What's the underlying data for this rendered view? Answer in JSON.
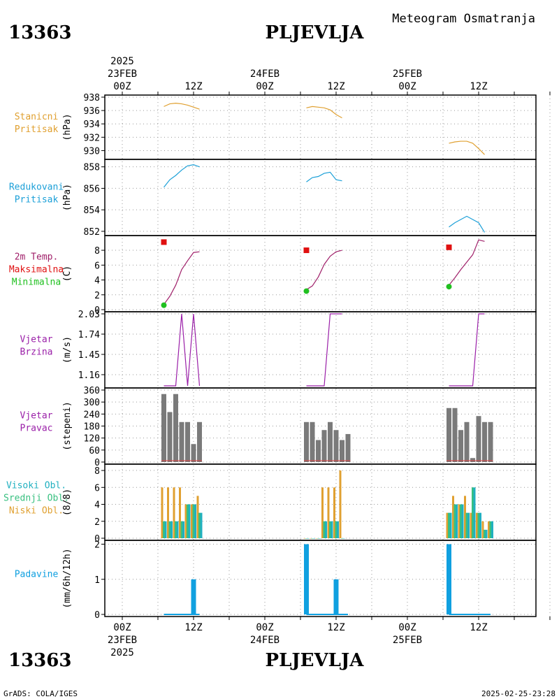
{
  "header": {
    "station_id": "13363",
    "station_name": "PLJEVLJA",
    "meteogram_title": "Meteogram Osmatranja"
  },
  "time_axis": {
    "top": [
      {
        "year": "2025",
        "date": "23FEB",
        "hour": "00Z"
      },
      {
        "hour": "12Z"
      },
      {
        "date": "24FEB",
        "hour": "00Z"
      },
      {
        "hour": "12Z"
      },
      {
        "date": "25FEB",
        "hour": "00Z"
      },
      {
        "hour": "12Z"
      }
    ],
    "bottom": [
      {
        "hour": "00Z",
        "date": "23FEB",
        "year": "2025"
      },
      {
        "hour": "12Z"
      },
      {
        "hour": "00Z",
        "date": "24FEB"
      },
      {
        "hour": "12Z"
      },
      {
        "hour": "00Z",
        "date": "25FEB"
      },
      {
        "hour": "12Z"
      }
    ]
  },
  "footer": {
    "credit": "GrADS: COLA/IGES",
    "timestamp": "2025-02-25-23:28"
  },
  "colors": {
    "station_pressure": "#e0a030",
    "reduced_pressure": "#1ca0d8",
    "temperature": "#a0206a",
    "maximum": "#e01010",
    "minimum": "#20c020",
    "wind": "#9a1fa8",
    "wind_dir": "#7a7a7a",
    "cloud_high": "#20b0c0",
    "cloud_mid": "#38c080",
    "cloud_low": "#e0a030",
    "precip": "#10a0e0"
  },
  "chart_data": [
    {
      "type": "line",
      "panel": "station-pressure",
      "labels": [
        "Stanicni",
        "Pritisak"
      ],
      "ylabel": "(hPa)",
      "ylim": [
        929,
        938
      ],
      "yticks": [
        930,
        932,
        934,
        936,
        938
      ],
      "series": [
        {
          "x": [
            7,
            8,
            9,
            10,
            11,
            12,
            13
          ],
          "y": [
            936.6,
            937.0,
            937.1,
            937.0,
            936.8,
            936.5,
            936.2
          ]
        },
        {
          "x": [
            31,
            32,
            33,
            34,
            35,
            36,
            37
          ],
          "y": [
            936.4,
            936.6,
            936.5,
            936.4,
            936.1,
            935.4,
            934.9
          ]
        },
        {
          "x": [
            55,
            56,
            57,
            58,
            59,
            60,
            61
          ],
          "y": [
            931.1,
            931.3,
            931.4,
            931.4,
            931.1,
            930.3,
            929.4
          ]
        }
      ]
    },
    {
      "type": "line",
      "panel": "reduced-pressure",
      "labels": [
        "Redukovani",
        "Pritisak"
      ],
      "ylabel": "(hPa)",
      "ylim": [
        851.8,
        858.5
      ],
      "yticks": [
        852,
        854,
        856,
        858
      ],
      "series": [
        {
          "x": [
            7,
            8,
            9,
            10,
            11,
            12,
            13
          ],
          "y": [
            856.1,
            856.8,
            857.2,
            857.7,
            858.1,
            858.2,
            858.0
          ]
        },
        {
          "x": [
            31,
            32,
            33,
            34,
            35,
            36,
            37
          ],
          "y": [
            856.6,
            857.0,
            857.1,
            857.4,
            857.5,
            856.8,
            856.7
          ]
        },
        {
          "x": [
            55,
            56,
            57,
            58,
            59,
            60,
            61
          ],
          "y": [
            852.4,
            852.8,
            853.1,
            853.4,
            853.1,
            852.8,
            851.9
          ]
        }
      ]
    },
    {
      "type": "line",
      "panel": "temperature",
      "labels": [
        "2m Temp.",
        "Maksimalna",
        "Minimalna"
      ],
      "ylabel": "(C)",
      "ylim": [
        0,
        9.7
      ],
      "yticks": [
        0,
        2,
        4,
        6,
        8
      ],
      "series": [
        {
          "name": "2m Temp.",
          "x": [
            7,
            8,
            9,
            10,
            11,
            12,
            13
          ],
          "y": [
            0.7,
            1.8,
            3.3,
            5.4,
            6.6,
            7.7,
            7.8
          ]
        },
        {
          "name": "2m Temp.",
          "x": [
            31,
            32,
            33,
            34,
            35,
            36,
            37
          ],
          "y": [
            2.7,
            3.2,
            4.4,
            6.1,
            7.2,
            7.8,
            8.0
          ]
        },
        {
          "name": "2m Temp.",
          "x": [
            55,
            56,
            57,
            58,
            59,
            60,
            61
          ],
          "y": [
            3.3,
            4.3,
            5.4,
            6.4,
            7.4,
            9.4,
            9.2
          ]
        }
      ],
      "maximum": {
        "x": [
          7,
          31,
          55
        ],
        "y": [
          9.1,
          8.0,
          8.4
        ]
      },
      "minimum": {
        "x": [
          7,
          31,
          55
        ],
        "y": [
          0.6,
          2.5,
          3.1
        ]
      }
    },
    {
      "type": "line",
      "panel": "wind-speed",
      "labels": [
        "Vjetar",
        "Brzina"
      ],
      "ylabel": "(m/s)",
      "ylim": [
        1.0,
        2.03
      ],
      "ytick_labels": [
        "2.03",
        "1.74",
        "1.45",
        "1.16"
      ],
      "yticks": [
        2.03,
        1.74,
        1.45,
        1.16
      ],
      "series": [
        {
          "x": [
            7,
            9,
            10,
            11,
            12,
            13
          ],
          "y": [
            1.0,
            1.0,
            2.03,
            1.0,
            2.03,
            1.0
          ]
        },
        {
          "x": [
            31,
            34,
            35,
            37
          ],
          "y": [
            1.0,
            1.0,
            2.03,
            2.03
          ]
        },
        {
          "x": [
            55,
            59,
            60,
            61
          ],
          "y": [
            1.0,
            1.0,
            2.03,
            2.03
          ]
        }
      ]
    },
    {
      "type": "bar",
      "panel": "wind-direction",
      "labels": [
        "Vjetar",
        "Pravac"
      ],
      "ylabel": "(stepeni)",
      "ylim": [
        0,
        360
      ],
      "yticks": [
        0,
        60,
        120,
        180,
        240,
        300,
        360
      ],
      "x": [
        7,
        8,
        9,
        10,
        11,
        12,
        13,
        31,
        32,
        33,
        34,
        35,
        36,
        37,
        38,
        55,
        56,
        57,
        58,
        59,
        60,
        61,
        62
      ],
      "values": [
        340,
        250,
        340,
        200,
        200,
        90,
        200,
        200,
        200,
        110,
        160,
        200,
        160,
        110,
        140,
        270,
        270,
        160,
        200,
        20,
        230,
        200,
        200
      ]
    },
    {
      "type": "bar",
      "panel": "clouds",
      "labels": [
        "Visoki Obl.",
        "Srednji Obl.",
        "Niski Obl."
      ],
      "ylabel": "(8/8)",
      "ylim": [
        0,
        8.5
      ],
      "yticks": [
        0,
        2,
        4,
        6,
        8
      ],
      "x": [
        7,
        8,
        9,
        10,
        11,
        12,
        13,
        31,
        32,
        33,
        34,
        35,
        36,
        37,
        55,
        56,
        57,
        58,
        59,
        60,
        61,
        62
      ],
      "series": [
        {
          "name": "Niski Obl.",
          "values": [
            6,
            6,
            6,
            6,
            4,
            4,
            5,
            0,
            0,
            0,
            6,
            6,
            6,
            8,
            3,
            5,
            4,
            5,
            3,
            3,
            2,
            2
          ]
        },
        {
          "name": "Srednji Obl.",
          "values": [
            2,
            2,
            2,
            2,
            4,
            4,
            3,
            0,
            0,
            0,
            2,
            2,
            2,
            0,
            3,
            4,
            4,
            3,
            6,
            3,
            1,
            2
          ]
        },
        {
          "name": "Visoki Obl.",
          "values": [
            2,
            2,
            2,
            2,
            4,
            4,
            3,
            0,
            0,
            0,
            2,
            2,
            2,
            0,
            3,
            4,
            4,
            3,
            6,
            3,
            1,
            2
          ]
        }
      ]
    },
    {
      "type": "bar",
      "panel": "precipitation",
      "labels": [
        "Padavine"
      ],
      "ylabel": "(mm/6h/12h)",
      "ylim": [
        0,
        2.05
      ],
      "yticks": [
        0,
        1,
        2
      ],
      "x": [
        12,
        31,
        36,
        55
      ],
      "values": [
        1,
        2,
        1,
        2
      ]
    }
  ]
}
